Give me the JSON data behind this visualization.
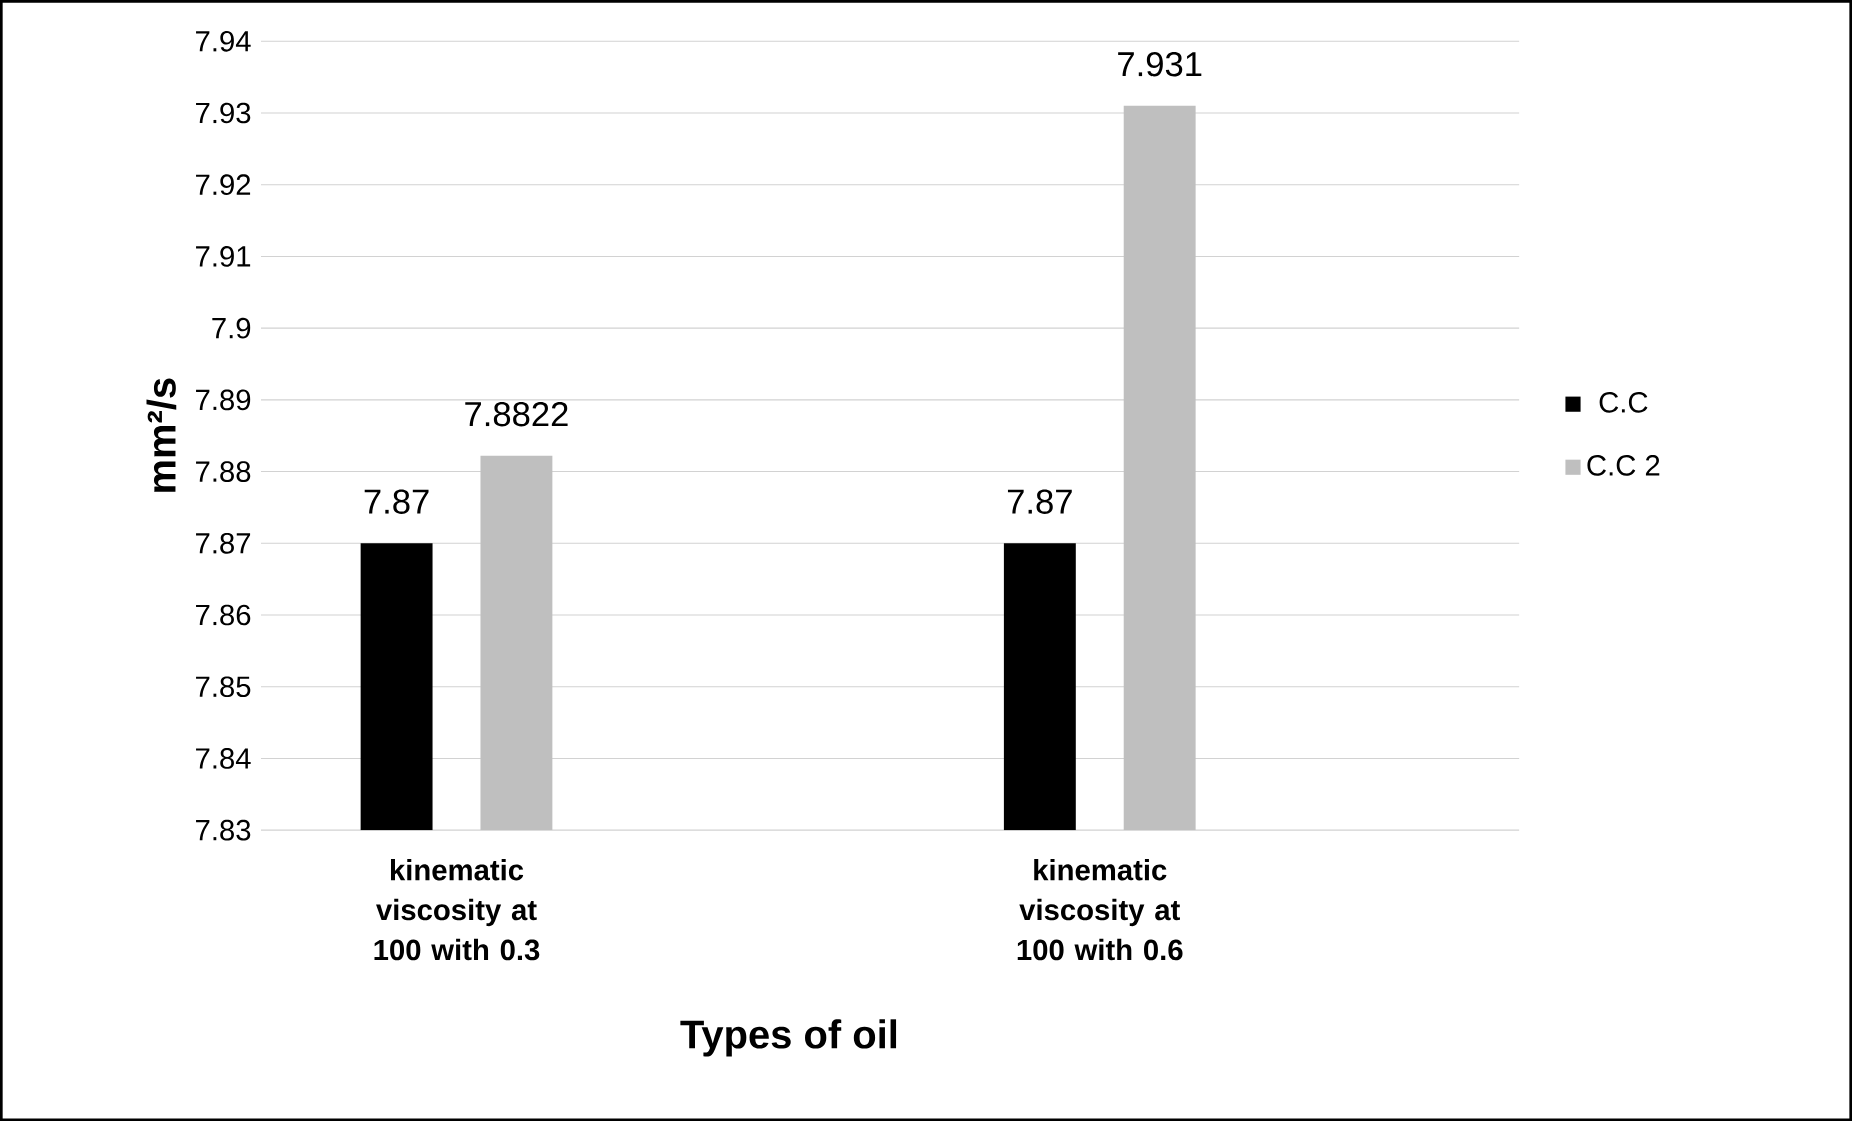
{
  "chart_data": {
    "type": "bar",
    "categories": [
      "kinematic viscosity at 100 with 0.3",
      "kinematic viscosity at 100 with 0.6"
    ],
    "series": [
      {
        "name": "C.C",
        "color": "#000000",
        "values": [
          7.87,
          7.87
        ]
      },
      {
        "name": "C.C 2",
        "color": "#bfbfbf",
        "values": [
          7.8822,
          7.931
        ]
      }
    ],
    "xlabel": "Types of oil",
    "ylabel": "mm²/s",
    "ylim": [
      7.83,
      7.94
    ],
    "yticks": [
      7.83,
      7.84,
      7.85,
      7.86,
      7.87,
      7.88,
      7.89,
      7.9,
      7.91,
      7.92,
      7.93,
      7.94
    ],
    "grid": "y",
    "legend": "right",
    "data_labels": true
  }
}
